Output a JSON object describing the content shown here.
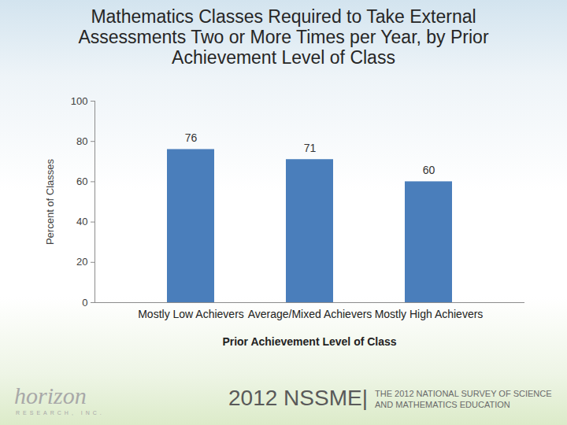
{
  "chart_data": {
    "type": "bar",
    "title": "Mathematics Classes Required to Take External Assessments Two or More Times per Year, by Prior Achievement Level of Class",
    "x_label": "Prior Achievement Level of Class",
    "y_label": "Percent of Classes",
    "categories": [
      "Mostly Low Achievers",
      "Average/Mixed Achievers",
      "Mostly High Achievers"
    ],
    "values": [
      76,
      71,
      60
    ],
    "color": "#4a7ebb",
    "ylim": [
      0,
      100
    ],
    "yticks": [
      0,
      20,
      40,
      60,
      80,
      100
    ],
    "grid": false,
    "data_labels": true,
    "annotations": [
      "2012 NSSME|",
      "THE 2012 NATIONAL SURVEY OF SCIENCE AND MATHEMATICS EDUCATION",
      "horizon",
      "RESEARCH, INC."
    ]
  }
}
